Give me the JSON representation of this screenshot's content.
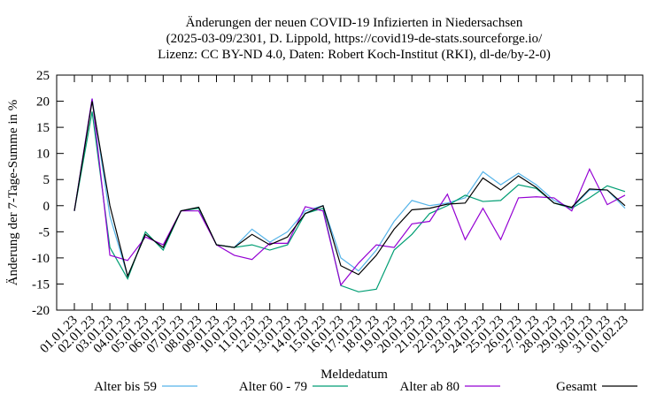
{
  "chart_data": {
    "type": "line",
    "title": [
      "Änderungen der neuen COVID-19 Infizierten in Niedersachsen",
      "(2025-03-09/2301, D. Lippold, https://covid19-de-stats.sourceforge.io/",
      "Lizenz: CC BY-ND 4.0, Daten: Robert Koch-Institut (RKI), dl-de/by-2-0)"
    ],
    "x_label": "Meldedatum",
    "y_label": "Änderung der 7-Tage-Summe in %",
    "categories": [
      "01.01.23",
      "02.01.23",
      "03.01.23",
      "04.01.23",
      "05.01.23",
      "06.01.23",
      "07.01.23",
      "08.01.23",
      "09.01.23",
      "10.01.23",
      "11.01.23",
      "12.01.23",
      "13.01.23",
      "14.01.23",
      "15.01.23",
      "16.01.23",
      "17.01.23",
      "18.01.23",
      "19.01.23",
      "20.01.23",
      "21.01.23",
      "22.01.23",
      "23.01.23",
      "24.01.23",
      "25.01.23",
      "26.01.23",
      "27.01.23",
      "28.01.23",
      "29.01.23",
      "30.01.23",
      "31.01.23",
      "01.02.23"
    ],
    "series": [
      {
        "name": "Alter bis 59",
        "color": "#56b4e9",
        "values": [
          -1,
          20.5,
          -2,
          -13.5,
          -5.5,
          -8,
          -1,
          -0.3,
          -7.5,
          -8,
          -4.5,
          -7,
          -5,
          -1,
          0,
          -10,
          -12.5,
          -8.5,
          -3,
          1,
          0,
          0.5,
          1.5,
          6.5,
          4,
          6.2,
          4,
          1,
          -0.5,
          3,
          3,
          -0.5
        ]
      },
      {
        "name": "Alter 60 - 79",
        "color": "#009e73",
        "values": [
          -1,
          18,
          -8,
          -14,
          -5,
          -8.5,
          -1,
          -0.5,
          -7.5,
          -8,
          -7.5,
          -8.5,
          -7.5,
          -1.5,
          -0.5,
          -15.3,
          -16.5,
          -16,
          -8.5,
          -5.5,
          -1.5,
          0,
          2,
          0.8,
          1,
          4,
          3.3,
          0.5,
          -0.5,
          1.5,
          3.8,
          2.7
        ]
      },
      {
        "name": "Alter ab 80",
        "color": "#9400d3",
        "values": [
          -1,
          20.5,
          -9.5,
          -10.5,
          -6,
          -7.5,
          -1,
          -1,
          -7.5,
          -9.5,
          -10.3,
          -7.2,
          -7.2,
          -0.2,
          -1,
          -15.2,
          -11,
          -7.5,
          -8,
          -3.5,
          -3,
          2.2,
          -6.5,
          -0.5,
          -6.5,
          1.5,
          1.7,
          1.5,
          -1,
          7,
          0.2,
          2
        ]
      },
      {
        "name": "Gesamt",
        "color": "#000000",
        "values": [
          -1,
          20,
          0,
          -13.5,
          -5.5,
          -8,
          -1,
          -0.3,
          -7.5,
          -8,
          -5.5,
          -7.5,
          -6,
          -1.5,
          0,
          -11.5,
          -13.2,
          -9.5,
          -4.5,
          -0.8,
          -0.5,
          0.3,
          0.5,
          5.3,
          3,
          5.7,
          3.5,
          0.5,
          -0.3,
          3.2,
          3,
          0
        ]
      }
    ],
    "ylim": [
      -20,
      25
    ],
    "yticks": [
      -20,
      -15,
      -10,
      -5,
      0,
      5,
      10,
      15,
      20,
      25
    ]
  }
}
